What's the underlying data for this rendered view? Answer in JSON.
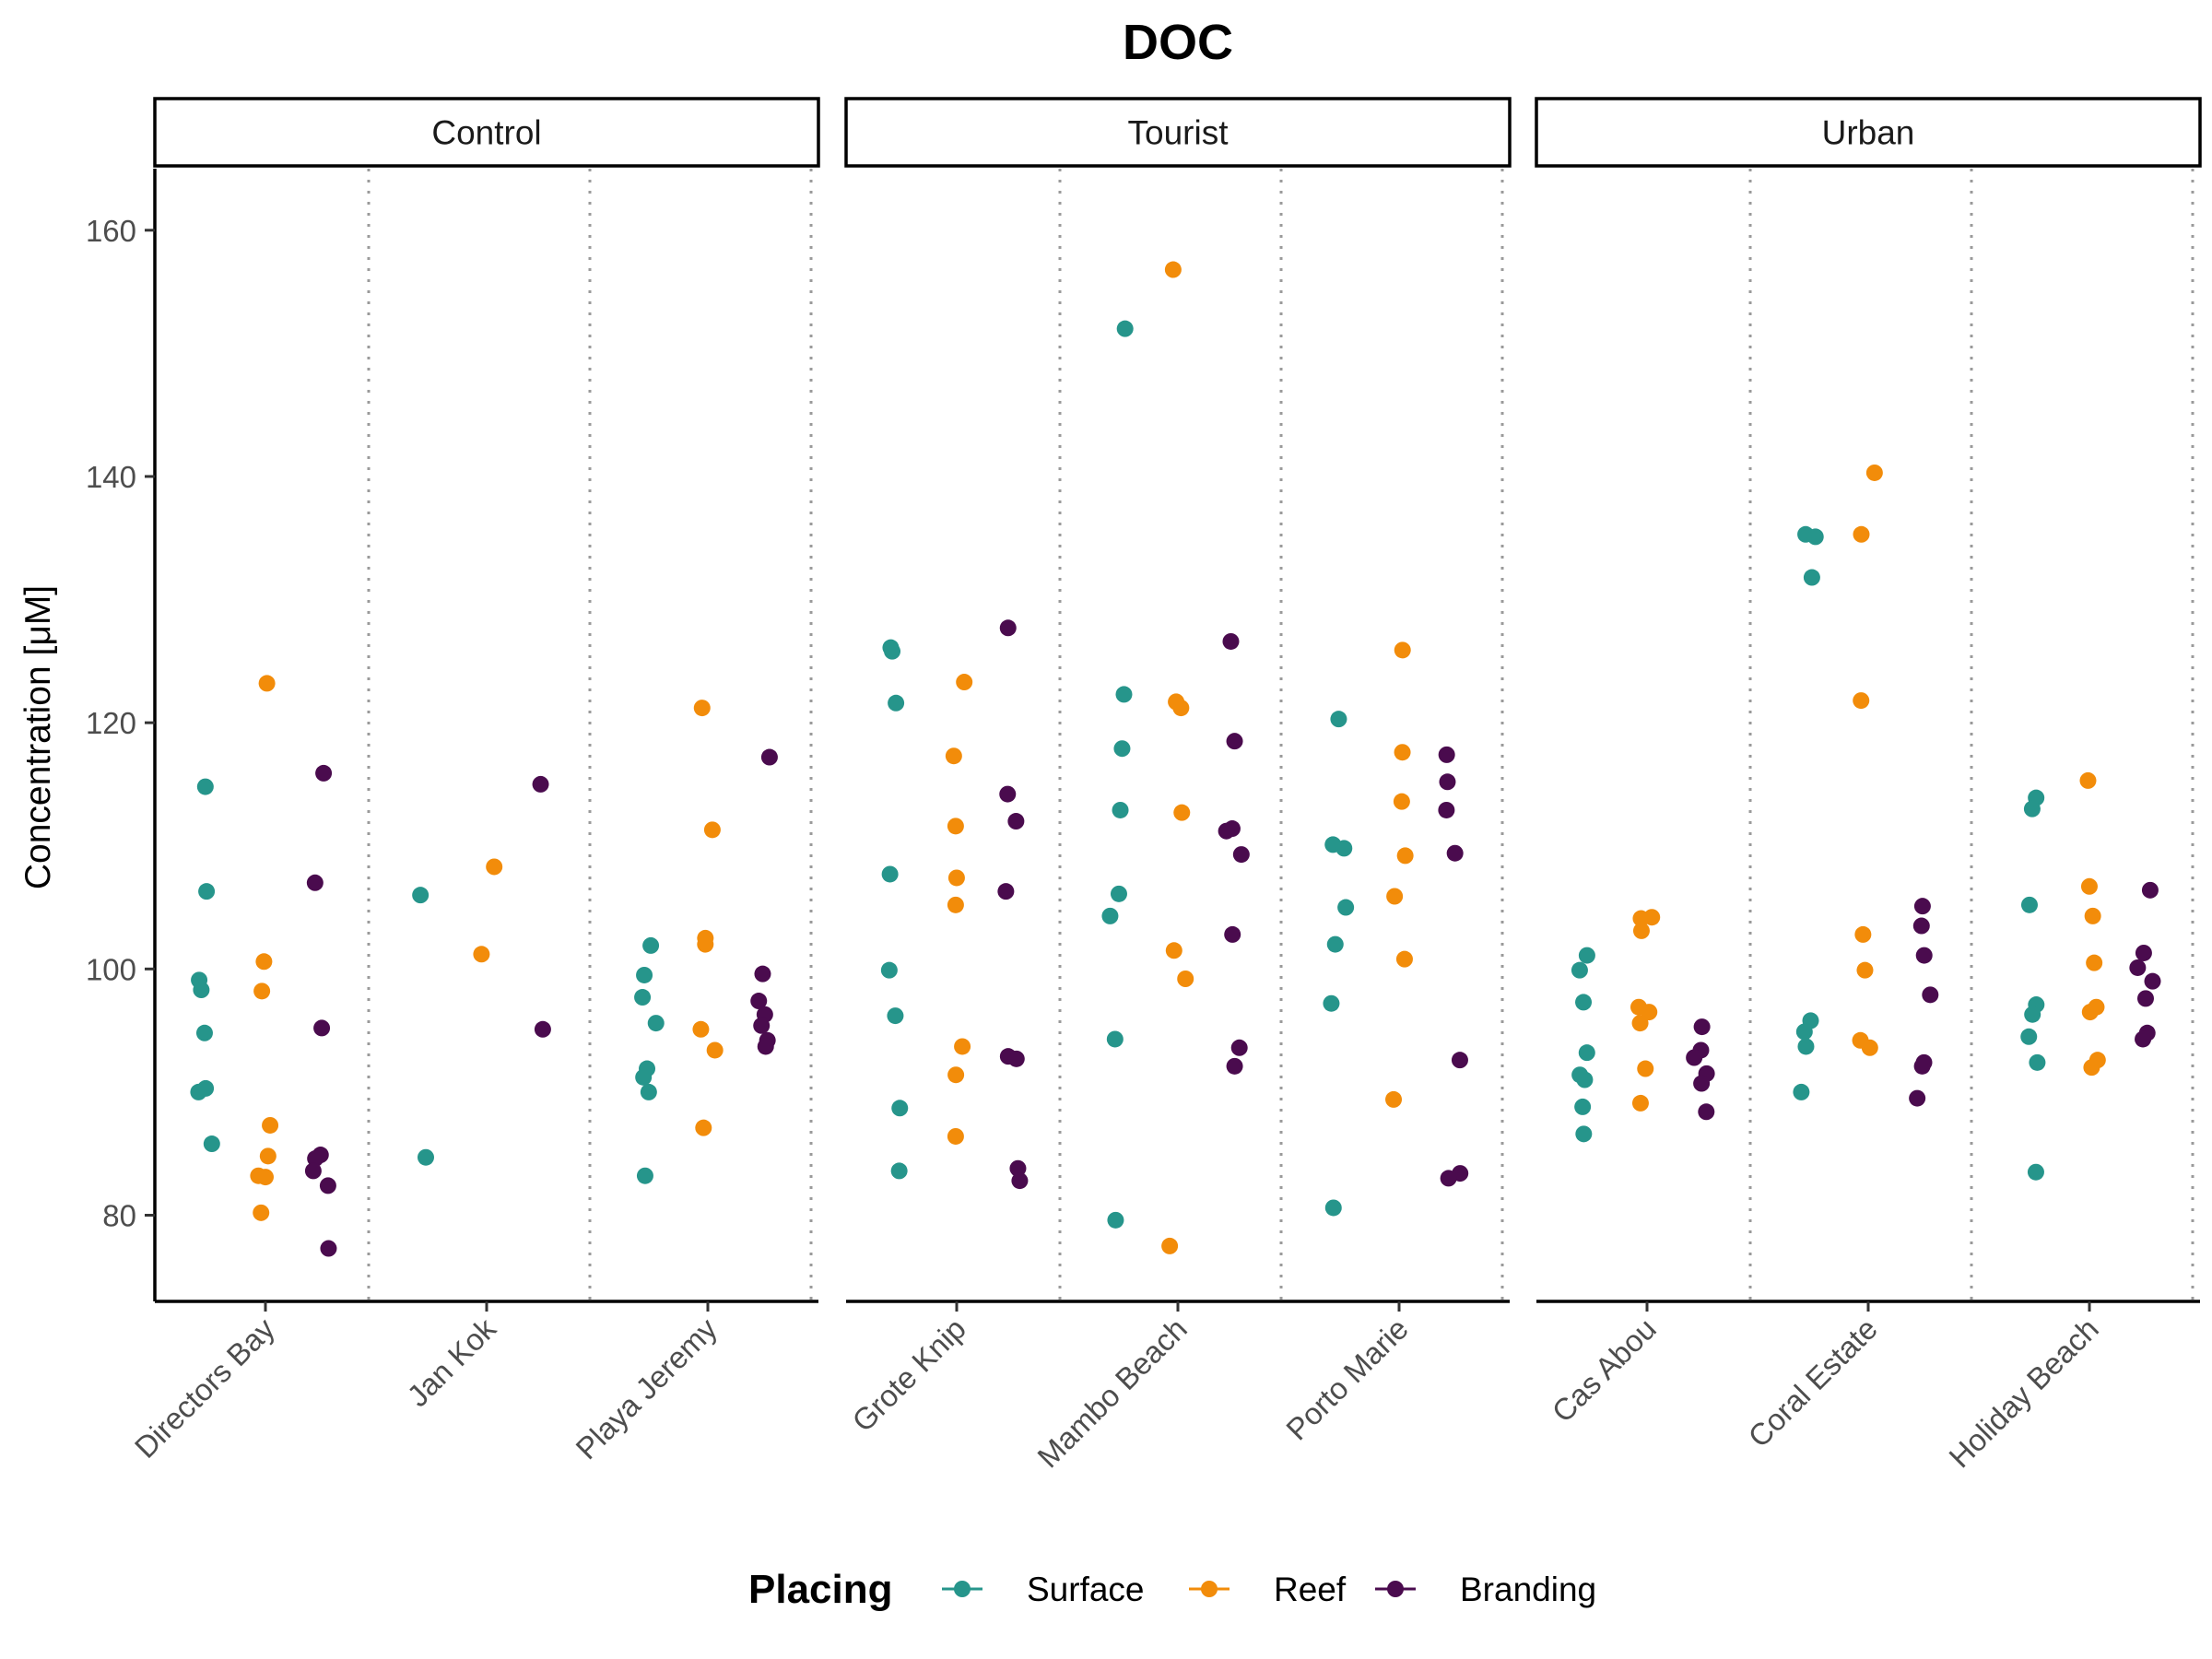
{
  "chart_data": {
    "type": "scatter",
    "title": "DOC",
    "ylabel": "Concentration [μM]",
    "ylim": [
      73,
      165
    ],
    "yticks": [
      80,
      100,
      120,
      140,
      160
    ],
    "grid": false,
    "legend_placement": "bottom",
    "legend_title": "Placing",
    "series": [
      {
        "name": "Surface",
        "color": "#26958b"
      },
      {
        "name": "Reef",
        "color": "#f28c0a"
      },
      {
        "name": "Branding",
        "color": "#4a0b4e"
      }
    ],
    "facets": [
      {
        "name": "Control",
        "sites": [
          {
            "name": "Directors Bay",
            "points": {
              "Surface": [
                114.8,
                106.3,
                99.1,
                98.3,
                94.8,
                90.3,
                90.0,
                85.8
              ],
              "Reef": [
                123.2,
                100.6,
                98.2,
                87.3,
                84.8,
                83.2,
                83.1,
                80.2
              ],
              "Branding": [
                115.9,
                107.0,
                95.2,
                84.9,
                84.6,
                83.6,
                82.4,
                77.3
              ]
            }
          },
          {
            "name": "Jan Kok",
            "points": {
              "Surface": [
                106.0,
                84.7
              ],
              "Reef": [
                108.3,
                101.2
              ],
              "Branding": [
                115.0,
                95.1
              ]
            }
          },
          {
            "name": "Playa Jeremy",
            "points": {
              "Surface": [
                101.9,
                99.5,
                97.7,
                95.6,
                91.9,
                91.2,
                90.0,
                83.2
              ],
              "Reef": [
                121.2,
                111.3,
                102.5,
                102.0,
                95.1,
                93.4,
                87.1
              ],
              "Branding": [
                117.2,
                99.6,
                97.4,
                96.3,
                95.4,
                94.2,
                93.7
              ]
            }
          }
        ]
      },
      {
        "name": "Tourist",
        "sites": [
          {
            "name": "Grote Knip",
            "points": {
              "Surface": [
                126.1,
                125.8,
                121.6,
                107.7,
                99.9,
                96.2,
                88.7,
                83.6
              ],
              "Reef": [
                123.3,
                117.3,
                111.6,
                107.4,
                105.2,
                93.7,
                91.4,
                86.4
              ],
              "Branding": [
                127.7,
                114.2,
                112.0,
                106.3,
                92.9,
                92.7,
                83.8,
                82.8
              ]
            }
          },
          {
            "name": "Mambo Beach",
            "points": {
              "Surface": [
                152.0,
                122.3,
                117.9,
                112.9,
                106.1,
                104.3,
                94.3,
                79.6
              ],
              "Reef": [
                156.8,
                121.7,
                121.2,
                112.7,
                101.5,
                99.2,
                77.5
              ],
              "Branding": [
                126.6,
                118.5,
                111.4,
                111.2,
                109.3,
                102.8,
                93.6,
                92.1
              ]
            }
          },
          {
            "name": "Porto Marie",
            "points": {
              "Surface": [
                120.3,
                110.1,
                109.8,
                105.0,
                102.0,
                97.2,
                80.6
              ],
              "Reef": [
                125.9,
                117.6,
                113.6,
                109.2,
                105.9,
                100.8,
                89.4
              ],
              "Branding": [
                117.4,
                115.2,
                112.9,
                109.4,
                92.6,
                83.4,
                83.0
              ]
            }
          }
        ]
      },
      {
        "name": "Urban",
        "sites": [
          {
            "name": "Cas Abou",
            "points": {
              "Surface": [
                101.1,
                99.9,
                97.3,
                93.2,
                91.4,
                91.0,
                88.8,
                86.6
              ],
              "Reef": [
                104.2,
                104.1,
                103.1,
                96.9,
                96.5,
                95.6,
                91.9,
                89.1
              ],
              "Branding": [
                95.3,
                93.4,
                92.8,
                91.5,
                90.7,
                88.4
              ]
            }
          },
          {
            "name": "Coral Estate",
            "points": {
              "Surface": [
                135.3,
                135.1,
                131.8,
                95.8,
                94.9,
                93.7,
                90.0
              ],
              "Reef": [
                140.3,
                135.3,
                121.8,
                102.8,
                99.9,
                94.2,
                93.6
              ],
              "Branding": [
                105.1,
                103.5,
                101.1,
                97.9,
                92.4,
                92.1,
                89.5
              ]
            }
          },
          {
            "name": "Holiday Beach",
            "points": {
              "Surface": [
                113.9,
                113.0,
                105.2,
                97.1,
                96.3,
                94.5,
                92.4,
                83.5
              ],
              "Reef": [
                115.3,
                106.7,
                104.3,
                100.5,
                96.9,
                96.5,
                92.6,
                92.0
              ],
              "Branding": [
                106.4,
                101.3,
                100.1,
                99.0,
                97.6,
                94.8,
                94.3
              ]
            }
          }
        ]
      }
    ]
  }
}
